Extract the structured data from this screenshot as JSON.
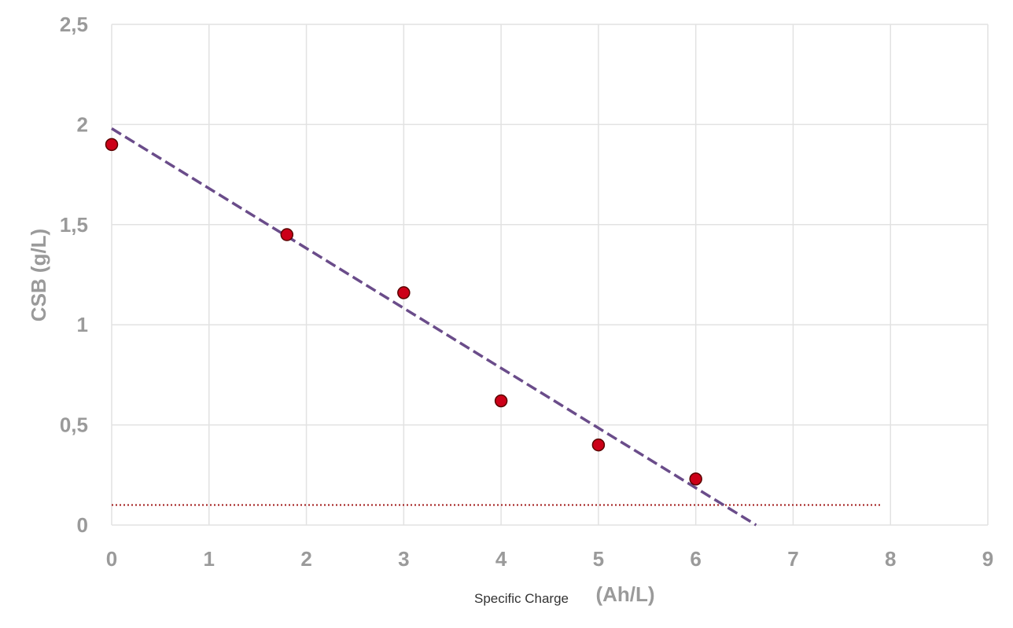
{
  "chart_data": {
    "type": "scatter",
    "xlabel_prefix": "Specific Charge",
    "xlabel_unit": "(Ah/L)",
    "ylabel": "CSB (g/L)",
    "xlim": [
      0,
      9
    ],
    "ylim": [
      0,
      2.5
    ],
    "x_ticks": [
      "0",
      "1",
      "2",
      "3",
      "4",
      "5",
      "6",
      "7",
      "8",
      "9"
    ],
    "y_ticks": [
      "0",
      "0,5",
      "1",
      "1,5",
      "2",
      "2,5"
    ],
    "grid": true,
    "series": [
      {
        "x": [
          0,
          1.8,
          3,
          4,
          5,
          6
        ],
        "y": [
          1.9,
          1.45,
          1.16,
          0.62,
          0.4,
          0.23
        ],
        "color": "#cc0018"
      }
    ],
    "trendline": {
      "x": [
        0,
        6.62
      ],
      "y": [
        1.98,
        0
      ],
      "style": "dashed",
      "color": "#6a4c8a"
    },
    "threshold": {
      "y": 0.1,
      "x_end": 7.9,
      "style": "dotted",
      "color": "#a01818"
    }
  }
}
